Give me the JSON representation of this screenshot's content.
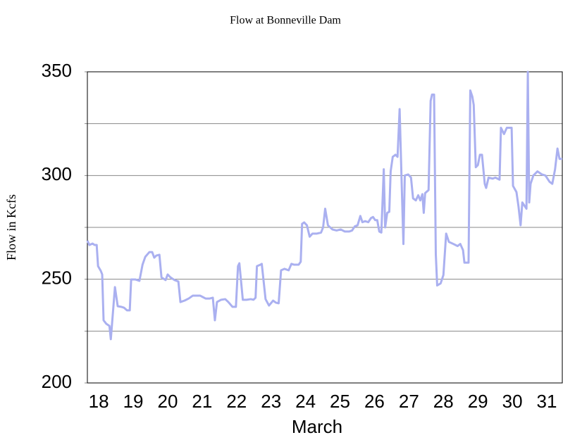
{
  "chart_data": {
    "type": "line",
    "title": "Flow at Bonneville Dam",
    "xlabel": "March",
    "ylabel": "Flow in Kcfs",
    "x": [
      17.67,
      17.73,
      17.82,
      17.88,
      17.94,
      17.98,
      18.06,
      18.1,
      18.14,
      18.22,
      18.31,
      18.35,
      18.41,
      18.47,
      18.55,
      18.65,
      18.73,
      18.82,
      18.9,
      18.94,
      19.06,
      19.18,
      19.27,
      19.35,
      19.47,
      19.55,
      19.61,
      19.67,
      19.76,
      19.82,
      19.94,
      20.0,
      20.08,
      20.2,
      20.31,
      20.37,
      20.49,
      20.61,
      20.73,
      20.86,
      20.94,
      21.02,
      21.1,
      21.22,
      21.31,
      21.37,
      21.43,
      21.55,
      21.67,
      21.76,
      21.88,
      21.98,
      22.04,
      22.08,
      22.18,
      22.29,
      22.41,
      22.49,
      22.55,
      22.59,
      22.69,
      22.73,
      22.84,
      22.94,
      23.06,
      23.14,
      23.22,
      23.29,
      23.39,
      23.51,
      23.59,
      23.67,
      23.8,
      23.86,
      23.9,
      23.96,
      24.04,
      24.12,
      24.2,
      24.33,
      24.45,
      24.51,
      24.57,
      24.65,
      24.78,
      24.9,
      25.02,
      25.14,
      25.27,
      25.35,
      25.43,
      25.51,
      25.59,
      25.65,
      25.73,
      25.82,
      25.9,
      25.96,
      26.02,
      26.08,
      26.14,
      26.2,
      26.27,
      26.31,
      26.37,
      26.43,
      26.47,
      26.53,
      26.61,
      26.67,
      26.73,
      26.8,
      26.84,
      26.88,
      26.98,
      27.06,
      27.12,
      27.2,
      27.27,
      27.33,
      27.39,
      27.43,
      27.47,
      27.57,
      27.63,
      27.67,
      27.73,
      27.78,
      27.82,
      27.92,
      28.0,
      28.08,
      28.16,
      28.29,
      28.41,
      28.49,
      28.57,
      28.61,
      28.73,
      28.78,
      28.84,
      28.88,
      28.94,
      29.0,
      29.06,
      29.12,
      29.2,
      29.24,
      29.31,
      29.43,
      29.51,
      29.63,
      29.67,
      29.76,
      29.84,
      29.98,
      30.02,
      30.12,
      30.18,
      30.24,
      30.29,
      30.37,
      30.41,
      30.45,
      30.49,
      30.53,
      30.61,
      30.73,
      30.86,
      30.96,
      31.08,
      31.16,
      31.24,
      31.31,
      31.37,
      31.45
    ],
    "series": [
      {
        "color": "#aab0f0",
        "values": [
          268.6,
          266.5,
          267.2,
          266.5,
          266.5,
          256.3,
          254.0,
          252.3,
          230.2,
          228.5,
          227.5,
          221.1,
          233.6,
          246.2,
          237.0,
          236.7,
          236.3,
          235.0,
          235.0,
          249.9,
          249.9,
          249.2,
          257.0,
          260.8,
          263.1,
          263.1,
          260.4,
          261.4,
          261.8,
          250.9,
          249.6,
          252.3,
          250.9,
          249.6,
          248.9,
          239.0,
          239.7,
          240.7,
          242.1,
          242.1,
          242.1,
          241.4,
          240.7,
          240.7,
          241.1,
          230.2,
          239.0,
          240.1,
          240.4,
          239.0,
          236.7,
          236.7,
          256.3,
          257.7,
          240.1,
          240.1,
          240.4,
          240.1,
          241.1,
          256.3,
          257.0,
          257.4,
          240.4,
          237.3,
          239.7,
          238.7,
          238.4,
          254.3,
          255.0,
          254.3,
          257.4,
          257.0,
          257.0,
          258.4,
          276.7,
          277.4,
          276,
          270.5,
          272,
          272,
          272.5,
          275,
          284,
          276,
          274,
          273.5,
          274,
          273,
          273,
          273.5,
          275.5,
          276,
          280.5,
          277.5,
          278,
          277.5,
          279.5,
          280,
          278.5,
          278.5,
          273,
          272.5,
          303,
          275,
          282,
          282.5,
          302,
          309,
          310,
          309,
          332,
          290,
          267,
          300,
          300.5,
          299,
          289,
          288,
          290.5,
          288,
          291,
          282,
          291.5,
          293,
          336,
          339,
          339,
          262,
          247,
          248,
          252,
          272,
          268,
          267,
          266,
          267,
          264,
          258,
          258,
          341,
          338,
          334,
          304,
          305,
          310,
          310,
          296,
          294,
          299,
          298.5,
          299,
          298,
          323,
          320,
          323,
          323,
          295,
          292,
          285,
          276,
          287,
          285,
          284,
          350,
          287,
          296,
          300,
          302,
          300.5,
          300,
          297,
          296,
          303,
          313,
          308,
          308
        ]
      }
    ],
    "xlim": [
      17.67,
      31.45
    ],
    "xticks": [
      18,
      19,
      20,
      21,
      22,
      23,
      24,
      25,
      26,
      27,
      28,
      29,
      30,
      31
    ],
    "ylim": [
      200,
      350
    ],
    "yticks": [
      200,
      250,
      300,
      350
    ],
    "minor_yticks": [
      225,
      275,
      325
    ],
    "grid": true
  }
}
